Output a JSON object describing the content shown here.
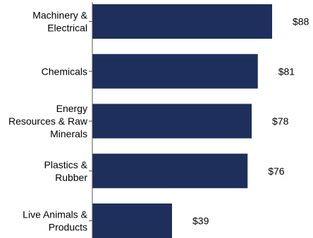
{
  "chart_data": {
    "type": "bar",
    "orientation": "horizontal",
    "categories": [
      [
        "Machinery &",
        "Electrical"
      ],
      [
        "Chemicals"
      ],
      [
        "Energy",
        "Resources & Raw",
        "Minerals"
      ],
      [
        "Plastics &",
        "Rubber"
      ],
      [
        "Live Animals &",
        "Products"
      ]
    ],
    "values": [
      88,
      81,
      78,
      76,
      39
    ],
    "value_labels": [
      "$88",
      "$81",
      "$78",
      "$76",
      "$39"
    ],
    "title": "",
    "xlabel": "",
    "ylabel": "",
    "xlim": [
      0,
      88
    ],
    "grid": false,
    "legend": "none"
  },
  "colors": {
    "bar": "#1f2f5c",
    "axis": "#555555",
    "text": "#000000"
  }
}
